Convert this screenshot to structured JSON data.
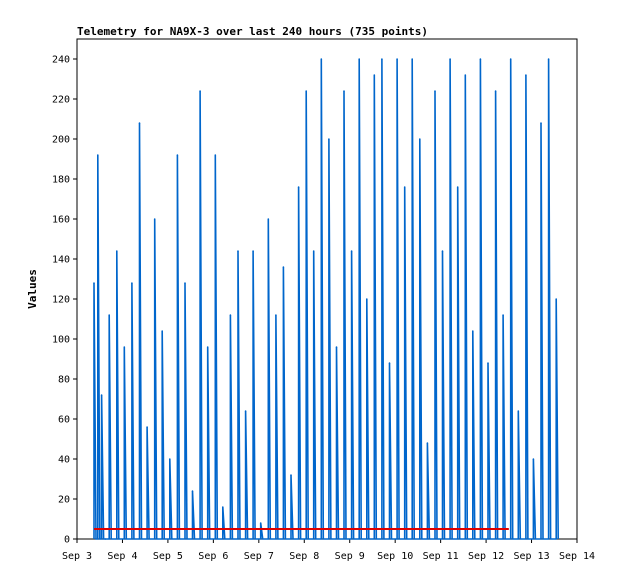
{
  "chart_data": {
    "type": "line",
    "title": "Telemetry for NA9X-3 over last 240 hours (735 points)",
    "xlabel": "",
    "ylabel": "Values",
    "x_range_days": [
      "Sep 3",
      "Sep 14"
    ],
    "ylim": [
      0,
      250
    ],
    "y_ticks": [
      0,
      20,
      40,
      60,
      80,
      100,
      120,
      140,
      160,
      180,
      200,
      220,
      240
    ],
    "x_ticks": [
      "Sep 3",
      "Sep 4",
      "Sep 5",
      "Sep 6",
      "Sep 7",
      "Sep 8",
      "Sep 9",
      "Sep 10",
      "Sep 11",
      "Sep 12",
      "Sep 13",
      "Sep 14"
    ],
    "grid": false,
    "colors": {
      "series": "#0066cc",
      "threshold": "#dd0000",
      "frame": "#000000"
    },
    "series": [
      {
        "style": "line",
        "x": [
          "Sep 3 09:00",
          "Sep 3 11:00",
          "Sep 3 13:00",
          "Sep 3 15:00",
          "Sep 3 17:00",
          "Sep 3 21:00",
          "Sep 4 01:00",
          "Sep 4 05:00",
          "Sep 4 09:00",
          "Sep 4 13:00",
          "Sep 4 17:00",
          "Sep 4 21:00",
          "Sep 5 01:00",
          "Sep 5 05:00",
          "Sep 5 09:00",
          "Sep 5 13:00",
          "Sep 5 17:00",
          "Sep 5 21:00",
          "Sep 6 01:00",
          "Sep 6 05:00",
          "Sep 6 09:00",
          "Sep 6 13:00",
          "Sep 6 17:00",
          "Sep 6 21:00",
          "Sep 7 01:00",
          "Sep 7 05:00",
          "Sep 7 09:00",
          "Sep 7 13:00",
          "Sep 7 17:00",
          "Sep 7 21:00",
          "Sep 8 01:00",
          "Sep 8 05:00",
          "Sep 8 09:00",
          "Sep 8 13:00",
          "Sep 8 17:00",
          "Sep 8 21:00",
          "Sep 9 01:00",
          "Sep 9 05:00",
          "Sep 9 09:00",
          "Sep 9 13:00",
          "Sep 9 17:00",
          "Sep 9 21:00",
          "Sep 10 01:00",
          "Sep 10 05:00",
          "Sep 10 09:00",
          "Sep 10 13:00",
          "Sep 10 17:00",
          "Sep 10 21:00",
          "Sep 11 01:00",
          "Sep 11 05:00",
          "Sep 11 09:00",
          "Sep 11 13:00",
          "Sep 11 17:00",
          "Sep 11 21:00",
          "Sep 12 01:00",
          "Sep 12 05:00",
          "Sep 12 09:00",
          "Sep 12 13:00",
          "Sep 12 17:00",
          "Sep 12 21:00",
          "Sep 13 01:00",
          "Sep 13 05:00",
          "Sep 13 09:00",
          "Sep 13 13:00"
        ],
        "values": [
          128,
          192,
          72,
          0,
          112,
          144,
          96,
          128,
          208,
          56,
          160,
          104,
          40,
          192,
          128,
          24,
          224,
          96,
          192,
          16,
          112,
          144,
          64,
          144,
          8,
          160,
          112,
          136,
          32,
          176,
          224,
          144,
          240,
          200,
          96,
          224,
          144,
          240,
          120,
          232,
          240,
          88,
          240,
          176,
          240,
          200,
          48,
          224,
          144,
          240,
          176,
          232,
          104,
          240,
          88,
          224,
          112,
          240,
          64,
          232,
          40,
          208,
          240,
          120
        ]
      },
      {
        "style": "threshold",
        "x": [
          "Sep 3 09:00",
          "Sep 12 12:00"
        ],
        "values": [
          5,
          5
        ]
      }
    ]
  }
}
